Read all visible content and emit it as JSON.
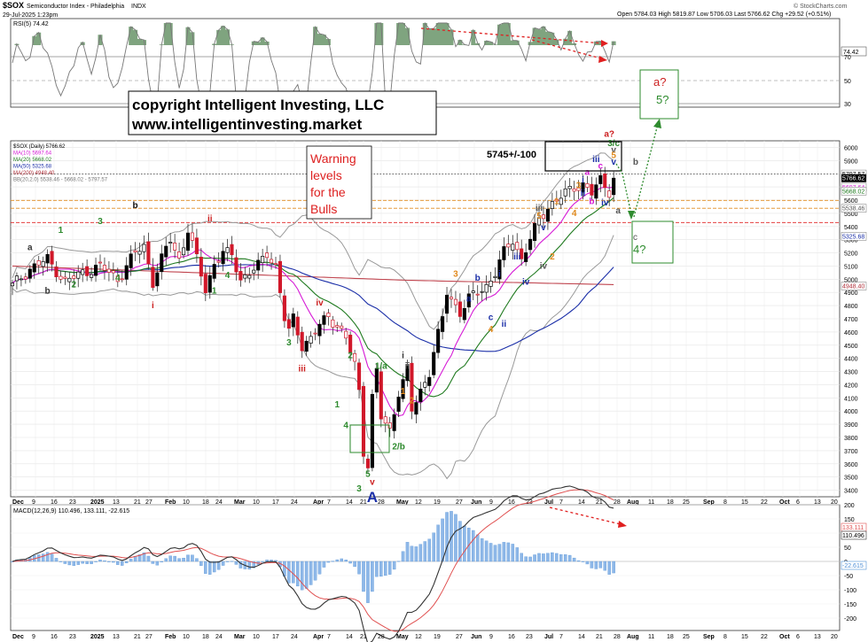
{
  "header": {
    "symbol": "$SOX",
    "name": "Semiconductor Index - Philadelphia",
    "exchange": "INDX",
    "date": "29-Jul-2025 1:23pm",
    "quote": "Open 5784.03  High 5819.87  Low 5706.03  Last 5766.62  Chg +29.52 (+0.51%)",
    "watermark": "© StockCharts.com"
  },
  "copyright": {
    "line1": "copyright Intelligent Investing, LLC",
    "line2": "www.intelligentinvesting.market"
  },
  "warning": [
    "Warning",
    "levels",
    "for the",
    "Bulls"
  ],
  "target_label": "5745+/-100",
  "rsi": {
    "label": "RSI(5) 74.42",
    "last": "74.42",
    "levels": [
      "70",
      "50",
      "30"
    ]
  },
  "legend": [
    {
      "text": "$SOX (Daily) 5766.62",
      "color": "#000000"
    },
    {
      "text": "MA(10) 5697.64",
      "color": "#d61bd6"
    },
    {
      "text": "MA(20) 5668.02",
      "color": "#1f7a1f"
    },
    {
      "text": "MA(50) 5325.68",
      "color": "#1b2fa8"
    },
    {
      "text": "MA(200) 4948.40",
      "color": "#b0303a"
    },
    {
      "text": "BB(20,2.0) 5538.46 - 5668.02 - 5797.57",
      "color": "#777777"
    }
  ],
  "price_tags": [
    {
      "value": "5797.57",
      "price": 5797.57,
      "bg": "#ffffff",
      "fg": "#000000"
    },
    {
      "value": "5766.62",
      "price": 5766.62,
      "bg": "#000000",
      "fg": "#ffffff"
    },
    {
      "value": "5697.64",
      "price": 5697.64,
      "bg": "#ffffff",
      "fg": "#d61bd6"
    },
    {
      "value": "5668.02",
      "price": 5668.02,
      "bg": "#ffffff",
      "fg": "#1f7a1f"
    },
    {
      "value": "5538.46",
      "price": 5538.46,
      "bg": "#ffffff",
      "fg": "#555555"
    },
    {
      "value": "5325.68",
      "price": 5325.68,
      "bg": "#ffffff",
      "fg": "#1b2fa8"
    },
    {
      "value": "4948.40",
      "price": 4948.4,
      "bg": "#ffffff",
      "fg": "#b0303a"
    }
  ],
  "macd": {
    "label": "MACD(12,26,9) 110.496, 133.111, -22.615",
    "values": [
      "133.111",
      "110.496",
      "-22.615"
    ],
    "axis": [
      "200",
      "150",
      "100",
      "50",
      "0",
      "-50",
      "-100",
      "-150",
      "-200"
    ]
  },
  "chart_data": {
    "type": "candlestick",
    "title": "$SOX Semiconductor Index - Philadelphia",
    "ylim": [
      3350,
      6050
    ],
    "y_ticks": [
      6000,
      5900,
      5800,
      5700,
      5600,
      5500,
      5400,
      5300,
      5200,
      5100,
      5000,
      4900,
      4800,
      4700,
      4600,
      4500,
      4400,
      4300,
      4200,
      4100,
      4000,
      3900,
      3800,
      3700,
      3600,
      3500,
      3400
    ],
    "x_ticks": [
      "Dec",
      "9",
      "16",
      "23",
      "2025",
      "13",
      "21",
      "27",
      "Feb",
      "10",
      "18",
      "24",
      "Mar",
      "10",
      "17",
      "24",
      "Apr",
      "7",
      "14",
      "21",
      "28",
      "May",
      "12",
      "19",
      "27",
      "Jun",
      "9",
      "16",
      "23",
      "Jul",
      "7",
      "14",
      "21",
      "28",
      "Aug",
      "11",
      "18",
      "25",
      "Sep",
      "8",
      "15",
      "22",
      "Oct",
      "6",
      "13",
      "20"
    ],
    "grid": true,
    "reference_lines": [
      5797.57,
      5597.57,
      5538.46,
      5430
    ],
    "price_path": [
      [
        0,
        4950
      ],
      [
        4,
        5080
      ],
      [
        8,
        5150
      ],
      [
        12,
        4980
      ],
      [
        16,
        5050
      ],
      [
        20,
        5100
      ],
      [
        24,
        5000
      ],
      [
        28,
        5200
      ],
      [
        30,
        5250
      ],
      [
        32,
        4980
      ],
      [
        34,
        5150
      ],
      [
        36,
        5300
      ],
      [
        38,
        5150
      ],
      [
        40,
        5380
      ],
      [
        42,
        5150
      ],
      [
        44,
        4920
      ],
      [
        46,
        5120
      ],
      [
        48,
        5200
      ],
      [
        50,
        5180
      ],
      [
        52,
        5000
      ],
      [
        54,
        5050
      ],
      [
        56,
        5100
      ],
      [
        58,
        5200
      ],
      [
        60,
        5100
      ],
      [
        61,
        4900
      ],
      [
        62,
        4700
      ],
      [
        63,
        4600
      ],
      [
        64,
        4700
      ],
      [
        66,
        4500
      ],
      [
        68,
        4550
      ],
      [
        70,
        4650
      ],
      [
        72,
        4720
      ],
      [
        74,
        4650
      ],
      [
        76,
        4550
      ],
      [
        78,
        4350
      ],
      [
        79,
        4150
      ],
      [
        80,
        3700
      ],
      [
        81,
        3600
      ],
      [
        82,
        4100
      ],
      [
        83,
        4300
      ],
      [
        84,
        3950
      ],
      [
        86,
        3850
      ],
      [
        88,
        4150
      ],
      [
        90,
        4300
      ],
      [
        91,
        4000
      ],
      [
        93,
        4150
      ],
      [
        95,
        4300
      ],
      [
        96,
        4450
      ],
      [
        98,
        4700
      ],
      [
        99,
        4900
      ],
      [
        100,
        4850
      ],
      [
        102,
        4750
      ],
      [
        104,
        4850
      ],
      [
        106,
        4900
      ],
      [
        108,
        4950
      ],
      [
        110,
        5050
      ],
      [
        112,
        5200
      ],
      [
        114,
        5300
      ],
      [
        116,
        5150
      ],
      [
        118,
        5300
      ],
      [
        120,
        5450
      ],
      [
        122,
        5550
      ],
      [
        124,
        5600
      ],
      [
        126,
        5650
      ],
      [
        128,
        5700
      ],
      [
        130,
        5720
      ],
      [
        132,
        5650
      ],
      [
        134,
        5750
      ],
      [
        136,
        5670
      ],
      [
        137,
        5766.62
      ]
    ],
    "wave_labels": [
      {
        "text": "a",
        "i": 4,
        "price": 5220,
        "color": "#333333"
      },
      {
        "text": "b",
        "i": 8,
        "price": 4890,
        "color": "#333333"
      },
      {
        "text": "1",
        "i": 11,
        "price": 5350,
        "color": "#2e8b2e"
      },
      {
        "text": "2",
        "i": 14,
        "price": 4940,
        "color": "#2e8b2e"
      },
      {
        "text": "3",
        "i": 20,
        "price": 5420,
        "color": "#2e8b2e"
      },
      {
        "text": "4",
        "i": 24,
        "price": 4990,
        "color": "#2e8b2e"
      },
      {
        "text": "b",
        "i": 28,
        "price": 5540,
        "color": "#111111"
      },
      {
        "text": "i",
        "i": 32,
        "price": 4780,
        "color": "#cc1f1f"
      },
      {
        "text": "ii",
        "i": 45,
        "price": 5440,
        "color": "#cc1f1f"
      },
      {
        "text": "1",
        "i": 46,
        "price": 4890,
        "color": "#2e8b2e"
      },
      {
        "text": "4",
        "i": 49,
        "price": 5010,
        "color": "#2e8b2e"
      },
      {
        "text": "3",
        "i": 63,
        "price": 4500,
        "color": "#2e8b2e"
      },
      {
        "text": "iii",
        "i": 66,
        "price": 4300,
        "color": "#cc1f1f"
      },
      {
        "text": "iv",
        "i": 70,
        "price": 4800,
        "color": "#cc1f1f"
      },
      {
        "text": "2",
        "i": 77,
        "price": 4400,
        "color": "#2e8b2e"
      },
      {
        "text": "1",
        "i": 74,
        "price": 4030,
        "color": "#2e8b2e"
      },
      {
        "text": "4",
        "i": 76,
        "price": 3870,
        "color": "#2e8b2e"
      },
      {
        "text": "1/a",
        "i": 84,
        "price": 4320,
        "color": "#2e8b2e"
      },
      {
        "text": "5",
        "i": 81,
        "price": 3500,
        "color": "#2e8b2e"
      },
      {
        "text": "v",
        "i": 82,
        "price": 3440,
        "color": "#cc1f1f"
      },
      {
        "text": "3",
        "i": 79,
        "price": 3390,
        "color": "#2e8b2e"
      },
      {
        "text": "1",
        "i": 89,
        "price": 4130,
        "color": "#e08a1e"
      },
      {
        "text": "2",
        "i": 91,
        "price": 4060,
        "color": "#e08a1e"
      },
      {
        "text": "i",
        "i": 89,
        "price": 4400,
        "color": "#333333"
      },
      {
        "text": "ii",
        "i": 90,
        "price": 4320,
        "color": "#333333"
      },
      {
        "text": "2/b",
        "i": 88,
        "price": 3710,
        "color": "#2e8b2e"
      },
      {
        "text": "3",
        "i": 101,
        "price": 5020,
        "color": "#e08a1e"
      },
      {
        "text": "a",
        "i": 104,
        "price": 4830,
        "color": "#1b2fa8"
      },
      {
        "text": "b",
        "i": 106,
        "price": 4990,
        "color": "#1b2fa8"
      },
      {
        "text": "c",
        "i": 109,
        "price": 4690,
        "color": "#1b2fa8"
      },
      {
        "text": "4",
        "i": 109,
        "price": 4600,
        "color": "#e08a1e"
      },
      {
        "text": "i",
        "i": 111,
        "price": 5020,
        "color": "#1b2fa8"
      },
      {
        "text": "ii",
        "i": 112,
        "price": 4640,
        "color": "#1b2fa8"
      },
      {
        "text": "iii",
        "i": 115,
        "price": 5150,
        "color": "#1b2fa8"
      },
      {
        "text": "iv",
        "i": 117,
        "price": 4960,
        "color": "#1b2fa8"
      },
      {
        "text": "iii",
        "i": 120,
        "price": 5520,
        "color": "#555555"
      },
      {
        "text": "iv",
        "i": 121,
        "price": 5080,
        "color": "#555555"
      },
      {
        "text": "5",
        "i": 120,
        "price": 5460,
        "color": "#e08a1e"
      },
      {
        "text": "v",
        "i": 121,
        "price": 5370,
        "color": "#1b2fa8"
      },
      {
        "text": "1",
        "i": 124,
        "price": 5570,
        "color": "#e08a1e"
      },
      {
        "text": "2",
        "i": 123,
        "price": 5150,
        "color": "#e08a1e"
      },
      {
        "text": "3",
        "i": 129,
        "price": 5690,
        "color": "#e08a1e"
      },
      {
        "text": "4",
        "i": 128,
        "price": 5480,
        "color": "#e08a1e"
      },
      {
        "text": "i",
        "i": 130,
        "price": 5730,
        "color": "#1b2fa8"
      },
      {
        "text": "ii",
        "i": 130,
        "price": 5630,
        "color": "#1b2fa8"
      },
      {
        "text": "iii",
        "i": 133,
        "price": 5890,
        "color": "#1b2fa8"
      },
      {
        "text": "iv",
        "i": 135,
        "price": 5560,
        "color": "#1b2fa8"
      },
      {
        "text": "v",
        "i": 137,
        "price": 5870,
        "color": "#1b2fa8"
      },
      {
        "text": "a",
        "i": 131,
        "price": 5790,
        "color": "#d61bd6"
      },
      {
        "text": "b",
        "i": 132,
        "price": 5570,
        "color": "#d61bd6"
      },
      {
        "text": "c",
        "i": 134,
        "price": 5840,
        "color": "#d61bd6"
      },
      {
        "text": "a",
        "i": 138,
        "price": 5500,
        "color": "#555555"
      },
      {
        "text": "b",
        "i": 142,
        "price": 5870,
        "color": "#555555"
      },
      {
        "text": "3/c",
        "i": 137,
        "price": 6010,
        "color": "#2e8b2e"
      },
      {
        "text": "v",
        "i": 137,
        "price": 5960,
        "color": "#555555"
      },
      {
        "text": "5",
        "i": 137,
        "price": 5920,
        "color": "#e08a1e"
      },
      {
        "text": "a?",
        "i": 136,
        "price": 6080,
        "color": "#cc1f1f"
      },
      {
        "text": "A",
        "i": 82,
        "price": 3310,
        "color": "#1b2fa8"
      }
    ],
    "forecast_boxes": [
      {
        "labels": [
          "a?",
          "5?"
        ],
        "colors": [
          "#cc1f1f",
          "#2e8b2e"
        ]
      },
      {
        "labels": [
          "c",
          "4?"
        ],
        "colors": [
          "#555555",
          "#2e8b2e"
        ]
      }
    ],
    "warning_levels": [
      5597.57,
      5538.46,
      5430
    ]
  },
  "macd_data": {
    "type": "line",
    "series": [
      {
        "name": "MACD",
        "color": "#333333"
      },
      {
        "name": "Signal",
        "color": "#e05050"
      }
    ]
  }
}
